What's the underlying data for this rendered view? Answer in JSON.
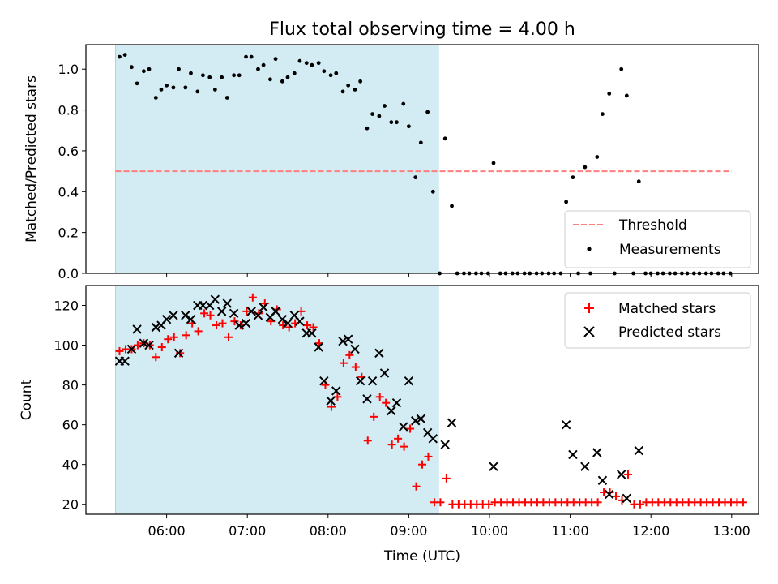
{
  "figure": {
    "title": "Flux total observing time = 4.00 h"
  },
  "chart_data": [
    {
      "type": "scatter",
      "panel": "top",
      "ylabel": "Matched/Predicted stars",
      "xlim": [
        "05:00",
        "13:20"
      ],
      "ylim": [
        0,
        1.12
      ],
      "yticks": [
        0.0,
        0.2,
        0.4,
        0.6,
        0.8,
        1.0
      ],
      "ytick_labels": [
        "0.0",
        "0.2",
        "0.4",
        "0.6",
        "0.8",
        "1.0"
      ],
      "grid": false,
      "legend": {
        "placement": "lower-right",
        "entries": [
          "Threshold",
          "Measurements"
        ]
      },
      "shaded_span": {
        "x": [
          "05:22",
          "09:22"
        ],
        "color": "#d3ebf2"
      },
      "threshold": {
        "name": "Threshold",
        "y": 0.5,
        "x": [
          "05:22",
          "13:00"
        ],
        "color": "#ff7f7f",
        "style": "dashed"
      },
      "series": [
        {
          "name": "Measurements",
          "marker": "dot",
          "color": "#000000",
          "points": [
            [
              "05:25",
              1.06
            ],
            [
              "05:29",
              1.07
            ],
            [
              "05:34",
              1.01
            ],
            [
              "05:38",
              0.93
            ],
            [
              "05:43",
              0.99
            ],
            [
              "05:47",
              1.0
            ],
            [
              "05:52",
              0.86
            ],
            [
              "05:56",
              0.9
            ],
            [
              "06:00",
              0.92
            ],
            [
              "06:05",
              0.91
            ],
            [
              "06:09",
              1.0
            ],
            [
              "06:14",
              0.91
            ],
            [
              "06:18",
              0.98
            ],
            [
              "06:23",
              0.89
            ],
            [
              "06:27",
              0.97
            ],
            [
              "06:32",
              0.96
            ],
            [
              "06:36",
              0.9
            ],
            [
              "06:41",
              0.96
            ],
            [
              "06:45",
              0.86
            ],
            [
              "06:50",
              0.97
            ],
            [
              "06:54",
              0.97
            ],
            [
              "06:59",
              1.06
            ],
            [
              "07:03",
              1.06
            ],
            [
              "07:08",
              1.0
            ],
            [
              "07:12",
              1.02
            ],
            [
              "07:17",
              0.95
            ],
            [
              "07:21",
              1.05
            ],
            [
              "07:26",
              0.94
            ],
            [
              "07:30",
              0.96
            ],
            [
              "07:35",
              0.98
            ],
            [
              "07:39",
              1.04
            ],
            [
              "07:44",
              1.03
            ],
            [
              "07:48",
              1.02
            ],
            [
              "07:53",
              1.03
            ],
            [
              "07:57",
              0.99
            ],
            [
              "08:02",
              0.97
            ],
            [
              "08:06",
              0.98
            ],
            [
              "08:11",
              0.89
            ],
            [
              "08:15",
              0.92
            ],
            [
              "08:20",
              0.9
            ],
            [
              "08:24",
              0.94
            ],
            [
              "08:29",
              0.71
            ],
            [
              "08:33",
              0.78
            ],
            [
              "08:38",
              0.77
            ],
            [
              "08:42",
              0.82
            ],
            [
              "08:47",
              0.74
            ],
            [
              "08:51",
              0.74
            ],
            [
              "08:56",
              0.83
            ],
            [
              "09:00",
              0.72
            ],
            [
              "09:05",
              0.47
            ],
            [
              "09:09",
              0.64
            ],
            [
              "09:14",
              0.79
            ],
            [
              "09:18",
              0.4
            ],
            [
              "09:23",
              0.0
            ],
            [
              "09:27",
              0.66
            ],
            [
              "09:32",
              0.33
            ],
            [
              "09:36",
              0.0
            ],
            [
              "09:41",
              0.0
            ],
            [
              "09:45",
              0.0
            ],
            [
              "09:50",
              0.0
            ],
            [
              "09:54",
              0.0
            ],
            [
              "09:59",
              0.0
            ],
            [
              "10:03",
              0.54
            ],
            [
              "10:08",
              0.0
            ],
            [
              "10:12",
              0.0
            ],
            [
              "10:17",
              0.0
            ],
            [
              "10:21",
              0.0
            ],
            [
              "10:26",
              0.0
            ],
            [
              "10:30",
              0.0
            ],
            [
              "10:35",
              0.0
            ],
            [
              "10:39",
              0.0
            ],
            [
              "10:44",
              0.0
            ],
            [
              "10:48",
              0.0
            ],
            [
              "10:53",
              0.0
            ],
            [
              "10:57",
              0.35
            ],
            [
              "11:02",
              0.47
            ],
            [
              "11:06",
              0.0
            ],
            [
              "11:11",
              0.52
            ],
            [
              "11:15",
              0.0
            ],
            [
              "11:20",
              0.57
            ],
            [
              "11:24",
              0.78
            ],
            [
              "11:29",
              0.88
            ],
            [
              "11:33",
              0.0
            ],
            [
              "11:38",
              1.0
            ],
            [
              "11:42",
              0.87
            ],
            [
              "11:47",
              0.0
            ],
            [
              "11:51",
              0.45
            ],
            [
              "11:56",
              0.0
            ],
            [
              "12:00",
              0.0
            ],
            [
              "12:05",
              0.0
            ],
            [
              "12:09",
              0.0
            ],
            [
              "12:14",
              0.0
            ],
            [
              "12:18",
              0.0
            ],
            [
              "12:23",
              0.0
            ],
            [
              "12:27",
              0.0
            ],
            [
              "12:32",
              0.0
            ],
            [
              "12:36",
              0.0
            ],
            [
              "12:41",
              0.0
            ],
            [
              "12:45",
              0.0
            ],
            [
              "12:50",
              0.0
            ],
            [
              "12:54",
              0.0
            ],
            [
              "12:59",
              0.0
            ]
          ]
        }
      ]
    },
    {
      "type": "scatter",
      "panel": "bottom",
      "xlabel": "Time (UTC)",
      "ylabel": "Count",
      "xlim": [
        "05:00",
        "13:20"
      ],
      "ylim": [
        15,
        130
      ],
      "xticks": [
        "06:00",
        "07:00",
        "08:00",
        "09:00",
        "10:00",
        "11:00",
        "12:00",
        "13:00"
      ],
      "yticks": [
        20,
        40,
        60,
        80,
        100,
        120
      ],
      "ytick_labels": [
        "20",
        "40",
        "60",
        "80",
        "100",
        "120"
      ],
      "grid": false,
      "legend": {
        "placement": "top-right",
        "entries": [
          "Matched stars",
          "Predicted stars"
        ]
      },
      "shaded_span": {
        "x": [
          "05:22",
          "09:22"
        ],
        "color": "#d3ebf2"
      },
      "series": [
        {
          "name": "Matched stars",
          "marker": "plus",
          "color": "#ff0000",
          "values": [
            97,
            98,
            98,
            100,
            101,
            100,
            94,
            99,
            103,
            104,
            96,
            105,
            111,
            107,
            116,
            115,
            110,
            111,
            104,
            112,
            110,
            117,
            124,
            116,
            121,
            112,
            118,
            110,
            109,
            111,
            117,
            110,
            109,
            101,
            80,
            69,
            74,
            91,
            95,
            89,
            84,
            52,
            64,
            74,
            71,
            50,
            53,
            49,
            58,
            29,
            40,
            44,
            21,
            21,
            33,
            20,
            20,
            20,
            20,
            20,
            20,
            20,
            21,
            21,
            21,
            21,
            21,
            21,
            21,
            21,
            21,
            21,
            21,
            21,
            21,
            21,
            21,
            21,
            21,
            21,
            26,
            26,
            24,
            22,
            35,
            20,
            20,
            21,
            21,
            21,
            21,
            21,
            21,
            21,
            21,
            21,
            21,
            21,
            21,
            21,
            21,
            21,
            21,
            21
          ],
          "x_start": "05:25",
          "x_step_minutes": 4.5
        },
        {
          "name": "Predicted stars",
          "marker": "x",
          "color": "#000000",
          "points": [
            [
              "05:25",
              92
            ],
            [
              "05:29",
              92
            ],
            [
              "05:34",
              98
            ],
            [
              "05:38",
              108
            ],
            [
              "05:43",
              101
            ],
            [
              "05:47",
              100
            ],
            [
              "05:52",
              109
            ],
            [
              "05:56",
              110
            ],
            [
              "06:00",
              113
            ],
            [
              "06:05",
              115
            ],
            [
              "06:09",
              96
            ],
            [
              "06:14",
              115
            ],
            [
              "06:18",
              113
            ],
            [
              "06:23",
              120
            ],
            [
              "06:27",
              120
            ],
            [
              "06:32",
              120
            ],
            [
              "06:36",
              123
            ],
            [
              "06:41",
              117
            ],
            [
              "06:45",
              121
            ],
            [
              "06:50",
              116
            ],
            [
              "06:54",
              110
            ],
            [
              "06:59",
              111
            ],
            [
              "07:03",
              117
            ],
            [
              "07:08",
              115
            ],
            [
              "07:12",
              119
            ],
            [
              "07:17",
              114
            ],
            [
              "07:21",
              117
            ],
            [
              "07:26",
              113
            ],
            [
              "07:30",
              111
            ],
            [
              "07:35",
              115
            ],
            [
              "07:39",
              112
            ],
            [
              "07:44",
              106
            ],
            [
              "07:48",
              106
            ],
            [
              "07:53",
              99
            ],
            [
              "07:57",
              82
            ],
            [
              "08:02",
              72
            ],
            [
              "08:06",
              77
            ],
            [
              "08:11",
              102
            ],
            [
              "08:15",
              103
            ],
            [
              "08:20",
              98
            ],
            [
              "08:24",
              82
            ],
            [
              "08:29",
              73
            ],
            [
              "08:33",
              82
            ],
            [
              "08:38",
              96
            ],
            [
              "08:42",
              86
            ],
            [
              "08:47",
              67
            ],
            [
              "08:51",
              71
            ],
            [
              "08:56",
              59
            ],
            [
              "09:00",
              82
            ],
            [
              "09:05",
              62
            ],
            [
              "09:09",
              63
            ],
            [
              "09:14",
              56
            ],
            [
              "09:18",
              53
            ],
            [
              "09:27",
              50
            ],
            [
              "09:32",
              61
            ],
            [
              "10:03",
              39
            ],
            [
              "10:57",
              60
            ],
            [
              "11:02",
              45
            ],
            [
              "11:11",
              39
            ],
            [
              "11:20",
              46
            ],
            [
              "11:24",
              32
            ],
            [
              "11:29",
              25
            ],
            [
              "11:38",
              35
            ],
            [
              "11:42",
              23
            ],
            [
              "11:51",
              47
            ]
          ]
        }
      ]
    }
  ]
}
